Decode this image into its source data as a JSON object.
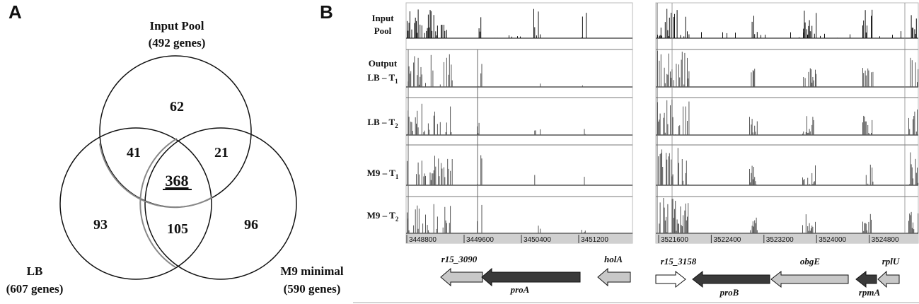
{
  "panel_a": {
    "letter": "A",
    "sets": {
      "input": {
        "name": "Input Pool",
        "count": "(492 genes)"
      },
      "lb": {
        "name": "LB",
        "count": "(607 genes)"
      },
      "m9": {
        "name": "M9 minimal",
        "count": "(590 genes)"
      }
    },
    "regions": {
      "input_only": "62",
      "input_lb": "41",
      "input_m9": "21",
      "all_three": "368",
      "lb_only": "93",
      "lb_m9": "105",
      "m9_only": "96"
    }
  },
  "panel_b": {
    "letter": "B",
    "track_labels": {
      "input": [
        "Input",
        "Pool"
      ],
      "output_word": "Output",
      "lb_t1": {
        "main": "LB – T",
        "sub": "1"
      },
      "lb_t2": {
        "main": "LB – T",
        "sub": "2"
      },
      "m9_t1": {
        "main": "M9 – T",
        "sub": "1"
      },
      "m9_t2": {
        "main": "M9 – T",
        "sub": "2"
      }
    },
    "left_ruler": [
      "3448800",
      "3449600",
      "3450400",
      "3451200"
    ],
    "right_ruler": [
      "3521600",
      "3522400",
      "3523200",
      "3524000",
      "3524800"
    ],
    "left_genes": {
      "g1": "r15_3090",
      "g2": "proA",
      "g3": "holA"
    },
    "right_genes": {
      "g1": "r15_3158",
      "g2": "proB",
      "g3": "obgE",
      "g4": "rpmA",
      "g5": "rplU"
    },
    "colors": {
      "dark_gene": "#3a3a3a",
      "light_gene": "#c8c8c8",
      "track_fill": "#1a1a1a",
      "ruler_bg": "#d0d0d0"
    }
  }
}
